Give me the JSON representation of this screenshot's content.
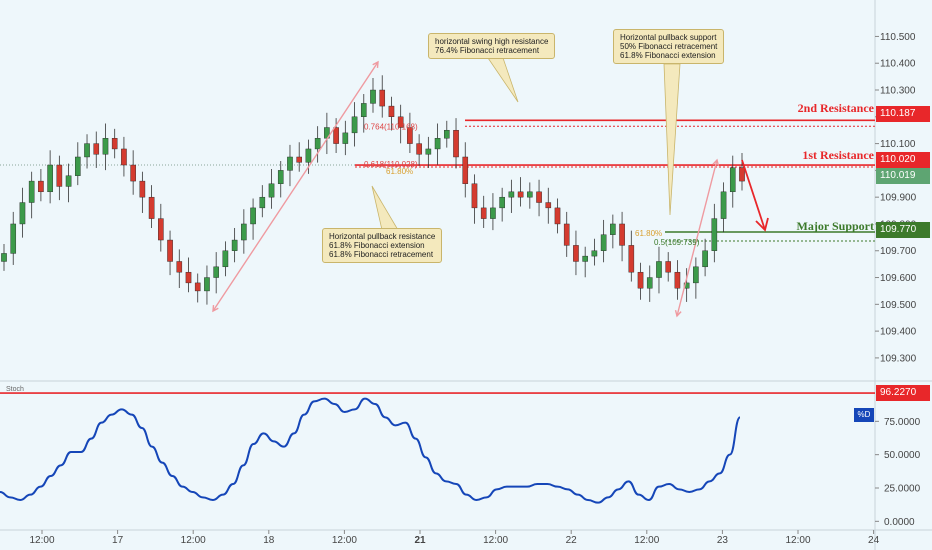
{
  "chart_data": {
    "type": "candlestick",
    "price_axis": {
      "ticks": [
        "110.500",
        "110.400",
        "110.300",
        "110.200",
        "110.100",
        "110.000",
        "109.900",
        "109.800",
        "109.700",
        "109.600",
        "109.500",
        "109.400",
        "109.300"
      ],
      "range": [
        109.225,
        110.58
      ]
    },
    "time_axis": {
      "labels": [
        "12:00",
        "17",
        "12:00",
        "18",
        "12:00",
        "21",
        "12:00",
        "22",
        "12:00",
        "23",
        "12:00",
        "24"
      ]
    },
    "candles_approx_close": [
      109.69,
      109.8,
      109.88,
      109.96,
      109.92,
      110.02,
      109.94,
      109.98,
      110.05,
      110.1,
      110.06,
      110.12,
      110.08,
      110.02,
      109.96,
      109.9,
      109.82,
      109.74,
      109.66,
      109.62,
      109.58,
      109.55,
      109.6,
      109.64,
      109.7,
      109.74,
      109.8,
      109.86,
      109.9,
      109.95,
      110.0,
      110.05,
      110.03,
      110.08,
      110.12,
      110.16,
      110.1,
      110.14,
      110.2,
      110.25,
      110.3,
      110.24,
      110.2,
      110.16,
      110.1,
      110.06,
      110.08,
      110.12,
      110.15,
      110.05,
      109.95,
      109.86,
      109.82,
      109.86,
      109.9,
      109.92,
      109.9,
      109.92,
      109.88,
      109.86,
      109.8,
      109.72,
      109.66,
      109.68,
      109.7,
      109.76,
      109.8,
      109.72,
      109.62,
      109.56,
      109.6,
      109.66,
      109.62,
      109.56,
      109.58,
      109.64,
      109.7,
      109.82,
      109.92,
      110.01,
      109.96
    ],
    "levels": [
      {
        "label": "2nd Resistance",
        "value": "110.187",
        "color": "#e8272a"
      },
      {
        "label": "1st Resistance",
        "value": "110.020",
        "color": "#e8272a"
      },
      {
        "label": "Major Support",
        "value": "109.770",
        "color": "#3c7a2b"
      }
    ],
    "current_price": "110.019",
    "fib_labels": [
      "0.764(110.168)",
      "0.618(110.028)",
      "61.80%",
      "61.80%",
      "0.5(109.739)"
    ],
    "annotations": [
      "horizontal swing high resistance\n76.4% Fibonacci retracement",
      "Horizontal pullback support\n50% Fibonacci retracement\n61.8% Fibonacci extension",
      "Horizontal pullback resistance\n61.8% Fibonacci extension\n61.8% Fibonacci retracement"
    ],
    "indicator": {
      "name": "Stoch",
      "legend": "%D",
      "ticks": [
        "75.0000",
        "50.0000",
        "25.0000",
        "0.0000"
      ],
      "level_value": "96.2270",
      "range": [
        -5,
        100
      ],
      "values": [
        22,
        18,
        16,
        20,
        26,
        34,
        42,
        52,
        52,
        62,
        74,
        80,
        84,
        80,
        70,
        56,
        44,
        34,
        26,
        22,
        18,
        16,
        20,
        28,
        42,
        58,
        66,
        60,
        56,
        66,
        80,
        90,
        92,
        88,
        82,
        84,
        92,
        88,
        78,
        72,
        74,
        62,
        48,
        36,
        30,
        28,
        20,
        16,
        18,
        24,
        26,
        26,
        26,
        28,
        28,
        26,
        24,
        20,
        16,
        14,
        18,
        24,
        30,
        20,
        16,
        26,
        28,
        24,
        22,
        24,
        30,
        36,
        50,
        78
      ]
    },
    "colors": {
      "up": "#3c9a4a",
      "down": "#d43b2f",
      "resistance": "#e8272a",
      "support": "#3c7a2b",
      "stoch_line": "#1546b8",
      "arrow": "#ef9aa0"
    }
  }
}
